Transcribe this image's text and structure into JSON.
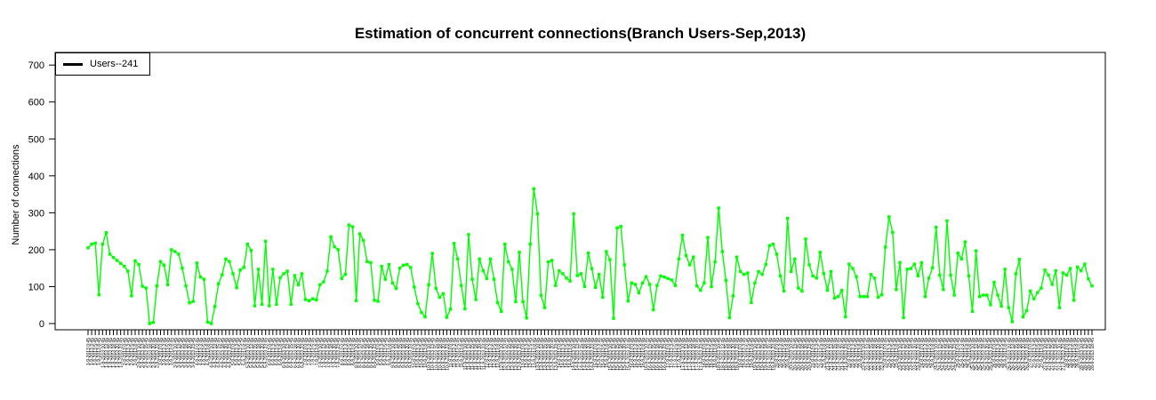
{
  "chart_data": {
    "type": "line",
    "title": "Estimation of concurrent connections(Branch Users-Sep,2013)",
    "xlabel": "",
    "ylabel": "Number of connections",
    "ylim": [
      0,
      700
    ],
    "yticks": [
      0,
      100,
      200,
      300,
      400,
      500,
      600,
      700
    ],
    "grid": false,
    "background": "#ffffff",
    "legend": {
      "position": "top-left",
      "entries": [
        {
          "label": "Users--241",
          "swatch_color": "#000000"
        }
      ]
    },
    "x_axis": {
      "kind": "datetime-labels-rotated-90",
      "month_year": "Sep 2013",
      "label_format": "d-9-2013 h:mm",
      "start_day": 1,
      "times_per_day": [
        "0:45",
        "3:45",
        "5:45",
        "8:45",
        "10:45",
        "13:45",
        "15:45",
        "18:45",
        "20:45",
        "23:45"
      ]
    },
    "series": [
      {
        "name": "Users--241",
        "color": "#00ff00",
        "marker": "square",
        "values": [
          205,
          215,
          218,
          78,
          215,
          246,
          188,
          179,
          171,
          163,
          155,
          142,
          75,
          170,
          160,
          101,
          96,
          0,
          3,
          102,
          168,
          158,
          105,
          200,
          195,
          188,
          150,
          102,
          56,
          60,
          164,
          126,
          120,
          4,
          0,
          46,
          108,
          132,
          175,
          168,
          135,
          97,
          145,
          152,
          215,
          198,
          48,
          147,
          52,
          223,
          48,
          147,
          52,
          124,
          135,
          142,
          52,
          130,
          105,
          135,
          65,
          62,
          67,
          64,
          105,
          113,
          142,
          235,
          208,
          200,
          122,
          133,
          267,
          262,
          62,
          243,
          225,
          168,
          165,
          63,
          60,
          155,
          120,
          160,
          110,
          95,
          150,
          158,
          160,
          152,
          99,
          54,
          30,
          18,
          105,
          190,
          95,
          71,
          81,
          17,
          39,
          217,
          175,
          103,
          40,
          241,
          120,
          65,
          175,
          143,
          122,
          175,
          120,
          57,
          33,
          215,
          167,
          147,
          59,
          193,
          59,
          15,
          215,
          365,
          297,
          76,
          43,
          167,
          171,
          103,
          143,
          135,
          123,
          115,
          297,
          130,
          135,
          100,
          191,
          149,
          98,
          133,
          71,
          195,
          173,
          14,
          259,
          263,
          159,
          61,
          110,
          106,
          83,
          110,
          127,
          106,
          37,
          103,
          129,
          126,
          122,
          118,
          103,
          175,
          239,
          184,
          159,
          180,
          102,
          90,
          110,
          233,
          100,
          167,
          313,
          195,
          117,
          16,
          75,
          180,
          141,
          133,
          137,
          57,
          110,
          141,
          133,
          160,
          211,
          215,
          188,
          129,
          88,
          285,
          141,
          175,
          96,
          88,
          229,
          159,
          129,
          123,
          193,
          135,
          90,
          141,
          69,
          73,
          90,
          18,
          161,
          149,
          127,
          73,
          73,
          73,
          133,
          123,
          71,
          78,
          207,
          289,
          247,
          92,
          165,
          16,
          147,
          149,
          161,
          129,
          165,
          73,
          123,
          151,
          261,
          131,
          92,
          278,
          131,
          77,
          191,
          175,
          221,
          129,
          33,
          197,
          73,
          77,
          77,
          51,
          112,
          77,
          47,
          147,
          43,
          5,
          135,
          174,
          18,
          35,
          88,
          67,
          84,
          96,
          145,
          131,
          106,
          143,
          43,
          137,
          131,
          149,
          63,
          153,
          143,
          161,
          121,
          102
        ]
      }
    ]
  }
}
